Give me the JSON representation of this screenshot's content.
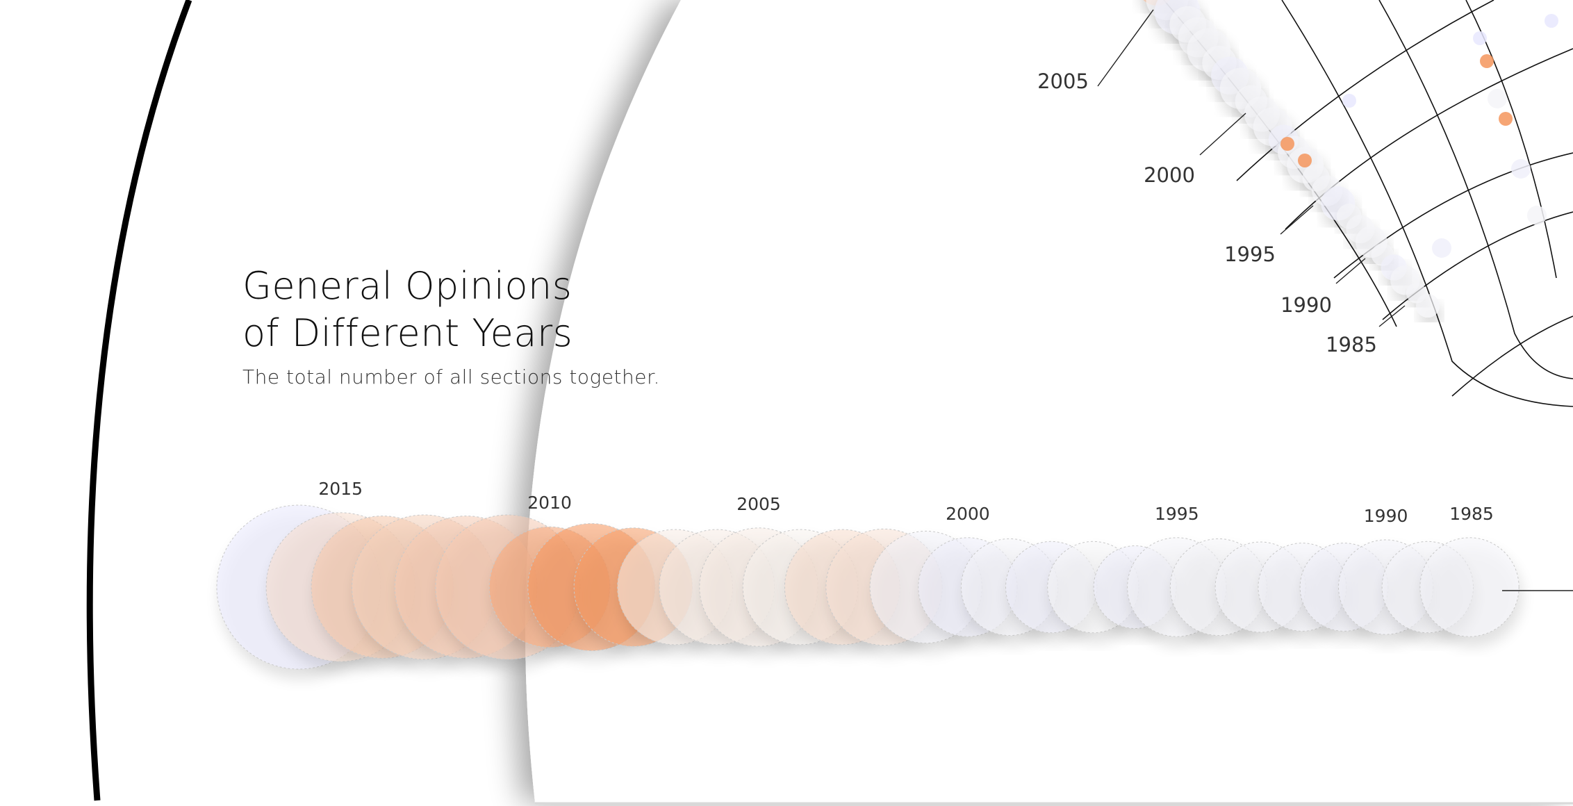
{
  "title_line1": "General Opinions",
  "title_line2": "of Different Years",
  "subtitle": "The total number of all sections together.",
  "colors": {
    "low": "#e6e6ff",
    "mid": "#f7f7f7",
    "high": "#f58a4b",
    "ring": "#000000",
    "grid": "#111111"
  },
  "chart_data": [
    {
      "type": "scatter",
      "encoding": "bubble",
      "title": "General Opinions of Different Years",
      "subtitle": "The total number of all sections together.",
      "x_labels": [
        "2015",
        "2010",
        "2005",
        "2000",
        "1995",
        "1990",
        "1985"
      ],
      "legend": "none",
      "points": [
        {
          "year": 2016,
          "size": 1.0,
          "opinion": -0.8
        },
        {
          "year": 2015,
          "size": 0.86,
          "opinion": 0.25
        },
        {
          "year": 2014,
          "size": 0.8,
          "opinion": 0.45
        },
        {
          "year": 2013,
          "size": 0.82,
          "opinion": 0.35
        },
        {
          "year": 2012,
          "size": 0.8,
          "opinion": 0.4
        },
        {
          "year": 2011,
          "size": 0.82,
          "opinion": 0.4
        },
        {
          "year": 2010,
          "size": 0.6,
          "opinion": 0.75
        },
        {
          "year": 2009,
          "size": 0.66,
          "opinion": 0.9
        },
        {
          "year": 2008,
          "size": 0.58,
          "opinion": 0.85
        },
        {
          "year": 2007,
          "size": 0.55,
          "opinion": 0.1
        },
        {
          "year": 2006,
          "size": 0.55,
          "opinion": 0.1
        },
        {
          "year": 2005,
          "size": 0.58,
          "opinion": 0.1
        },
        {
          "year": 2004,
          "size": 0.55,
          "opinion": 0.05
        },
        {
          "year": 2003,
          "size": 0.55,
          "opinion": 0.25
        },
        {
          "year": 2002,
          "size": 0.56,
          "opinion": 0.2
        },
        {
          "year": 2001,
          "size": 0.52,
          "opinion": -0.25
        },
        {
          "year": 2000,
          "size": 0.4,
          "opinion": -0.45
        },
        {
          "year": 1999,
          "size": 0.38,
          "opinion": -0.2
        },
        {
          "year": 1998,
          "size": 0.33,
          "opinion": -0.5
        },
        {
          "year": 1997,
          "size": 0.33,
          "opinion": -0.1
        },
        {
          "year": 1996,
          "size": 0.25,
          "opinion": -0.45
        },
        {
          "year": 1995,
          "size": 0.4,
          "opinion": -0.2
        },
        {
          "year": 1994,
          "size": 0.38,
          "opinion": -0.15
        },
        {
          "year": 1993,
          "size": 0.32,
          "opinion": -0.2
        },
        {
          "year": 1992,
          "size": 0.3,
          "opinion": -0.3
        },
        {
          "year": 1991,
          "size": 0.3,
          "opinion": -0.4
        },
        {
          "year": 1990,
          "size": 0.36,
          "opinion": -0.3
        },
        {
          "year": 1989,
          "size": 0.33,
          "opinion": -0.2
        },
        {
          "year": 1988,
          "size": 0.4,
          "opinion": -0.2
        }
      ]
    },
    {
      "type": "scatter",
      "encoding": "bubble-on-curved-grid",
      "x_labels": [
        "2005",
        "2000",
        "1995",
        "1990",
        "1985"
      ],
      "legend": "none"
    }
  ]
}
